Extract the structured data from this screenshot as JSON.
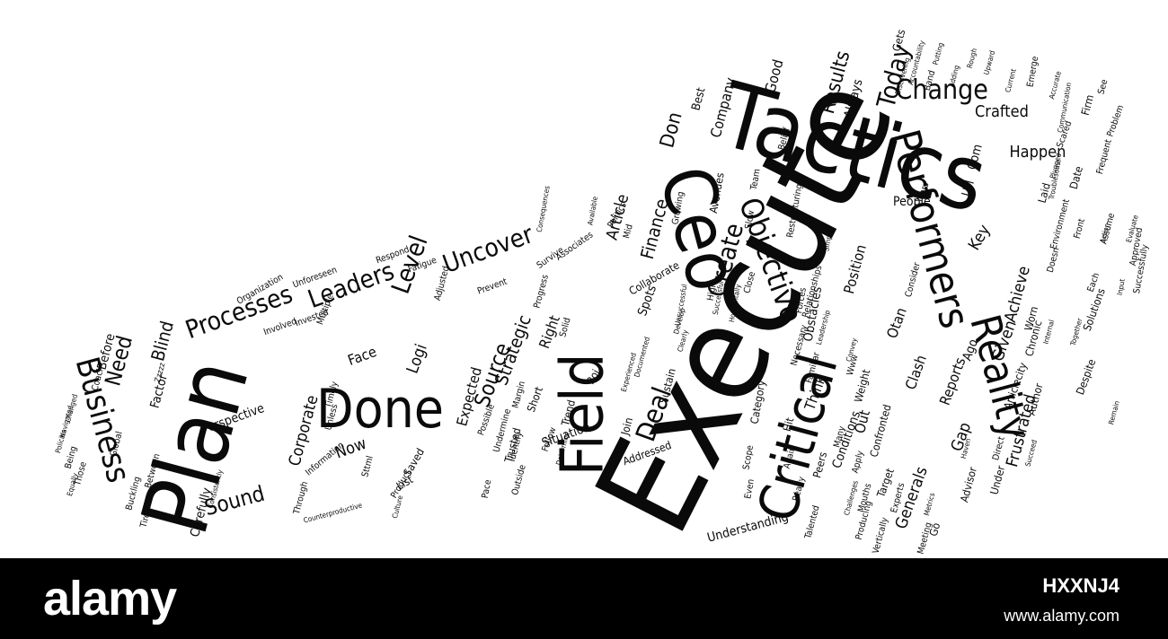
{
  "cloud": {
    "words": [
      "Execute",
      "Tactics",
      "Plan",
      "Ceo",
      "Field",
      "Critical",
      "Done",
      "Performers",
      "Reality",
      "Objective",
      "Business",
      "Processes",
      "Leaders",
      "Level",
      "Uncover",
      "Create",
      "Change",
      "Today",
      "Results",
      "Finance",
      "Deal",
      "Source",
      "Strategic",
      "Blind",
      "Need",
      "Sound",
      "Carefully",
      "Corporate",
      "Perspective",
      "Face",
      "Logi",
      "Now",
      "Expected",
      "Right",
      "Solid",
      "Generals",
      "Frustrated",
      "Gap",
      "Clash",
      "Reports",
      "Think",
      "Achieve",
      "Key",
      "Given",
      "Position",
      "People",
      "Obstacles",
      "Spots",
      "Article",
      "Don",
      "Company",
      "Good",
      "Crafted",
      "Always",
      "Best",
      "Happen",
      "Com",
      "Url",
      "Avenues",
      "Collaborate",
      "Situation",
      "Addressed",
      "Sustain",
      "Join",
      "Trusted",
      "Saved",
      "List",
      "Factor",
      "Before",
      "Otan",
      "Ago",
      "Conditions",
      "Understanding",
      "Out",
      "Hit",
      "Category",
      "Scope",
      "Even",
      "Target",
      "Weight",
      "Ready",
      "Worn",
      "Chronic",
      "Articlecity",
      "Author",
      "Peers",
      "Under",
      "Advisor",
      "Solutions",
      "Despite",
      "Laid",
      "Date",
      "Years",
      "Firm",
      "See",
      "Gets",
      "Band",
      "Belief",
      "Team",
      "Problem",
      "Emerge",
      "Scared",
      "Assume",
      "Front",
      "Each",
      "Doesn",
      "Environment",
      "Restructuring",
      "Slow",
      "Growing",
      "Mid",
      "Politics",
      "Associates",
      "Survive",
      "Progress",
      "Prevent",
      "Adjusted",
      "Fatigue",
      "Respond",
      "Unforeseen",
      "Organization",
      "Multiple",
      "Invested",
      "Involved",
      "Coach",
      "Global",
      "Those",
      "Being",
      "Between",
      "Buckling",
      "Tired",
      "Through",
      "Sttml",
      "Timely",
      "Unless",
      "Information",
      "Product",
      "Margin",
      "Follow",
      "Trend",
      "Short",
      "Roi",
      "Possible",
      "Undermine",
      "Identify",
      "Outside",
      "Pace",
      "Consider",
      "Relationships",
      "Forces",
      "Close",
      "Familiar",
      "Necessary",
      "Www",
      "Talented",
      "Confronted",
      "Many",
      "Apply",
      "Go",
      "Vertically",
      "Meeting",
      "Experts",
      "Again",
      "Producing",
      "Direct",
      "Approved",
      "Successfully",
      "Frequent",
      "Mouths",
      "Zzzzz",
      "Consistently",
      "Counterproductive",
      "Accountability",
      "Putting",
      "Discovering",
      "Current",
      "Accurate",
      "Communication",
      "Troublesome",
      "Plugged",
      "Remain",
      "Haven",
      "Metrics",
      "Culture",
      "Equally",
      "Policies",
      "Changed",
      "Navigated",
      "Together",
      "Internal",
      "Input",
      "Evaluate",
      "Action",
      "Upward",
      "Rough",
      "Adding",
      "Simple",
      "Successful",
      "Horizontally",
      "Develop",
      "Clearly",
      "Documented",
      "Experienced",
      "Challenges",
      "Determine",
      "Convey",
      "Consequences",
      "Available",
      "Unsuccessful",
      "High",
      "Succeed",
      "Leadership"
    ]
  },
  "footer": {
    "logo": "alamy",
    "stock_id": "HXXNJ4",
    "url": "www.alamy.com"
  }
}
